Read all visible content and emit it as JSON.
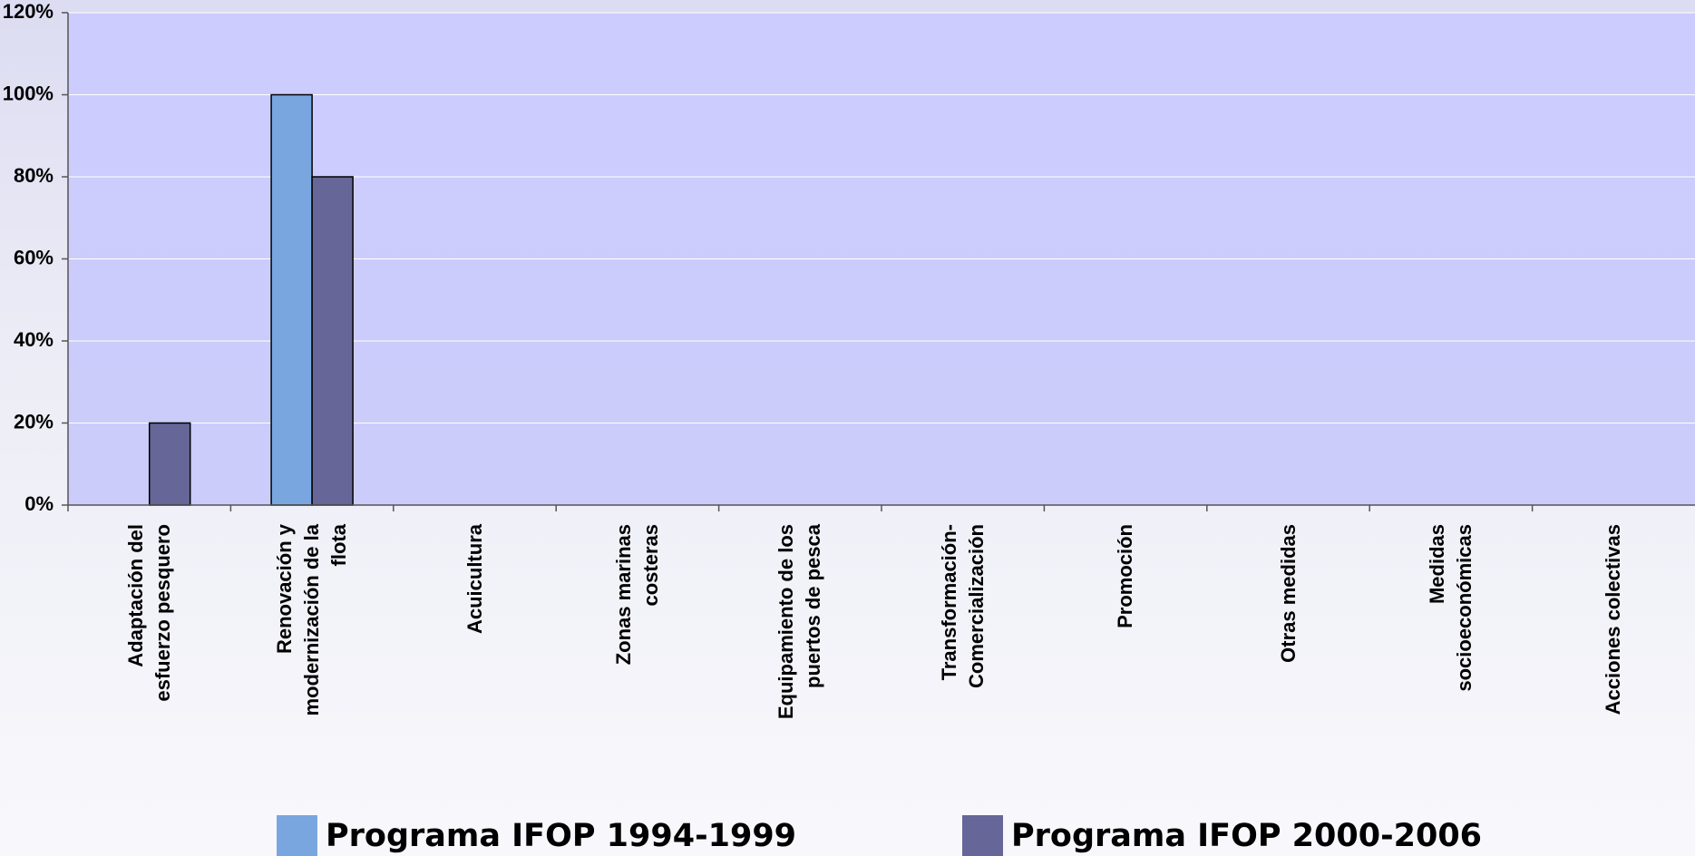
{
  "chart_data": {
    "type": "bar",
    "categories": [
      "Adaptación del esfuerzo pesquero",
      "Renovación y modernización de la flota",
      "Acuicultura",
      "Zonas marinas costeras",
      "Equipamiento de los puertos de pesca",
      "Transformación-Comercialización",
      "Promoción",
      "Otras medidas",
      "Medidas socioeconómicas",
      "Acciones colectivas"
    ],
    "series": [
      {
        "name": "Programa IFOP 1994-1999",
        "color": "#7aa6e0",
        "values": [
          0,
          100,
          0,
          0,
          0,
          0,
          0,
          0,
          0,
          0
        ]
      },
      {
        "name": "Programa IFOP 2000-2006",
        "color": "#666699",
        "values": [
          20,
          80,
          0,
          0,
          0,
          0,
          0,
          0,
          0,
          0
        ]
      }
    ],
    "ylim": [
      0,
      120
    ],
    "yticks": [
      {
        "value": 0,
        "label": "0%"
      },
      {
        "value": 20,
        "label": "20%"
      },
      {
        "value": 40,
        "label": "40%"
      },
      {
        "value": 60,
        "label": "60%"
      },
      {
        "value": 80,
        "label": "80%"
      },
      {
        "value": 100,
        "label": "100%"
      },
      {
        "value": 120,
        "label": "120%"
      }
    ],
    "grid": true,
    "legend": "bottom"
  }
}
